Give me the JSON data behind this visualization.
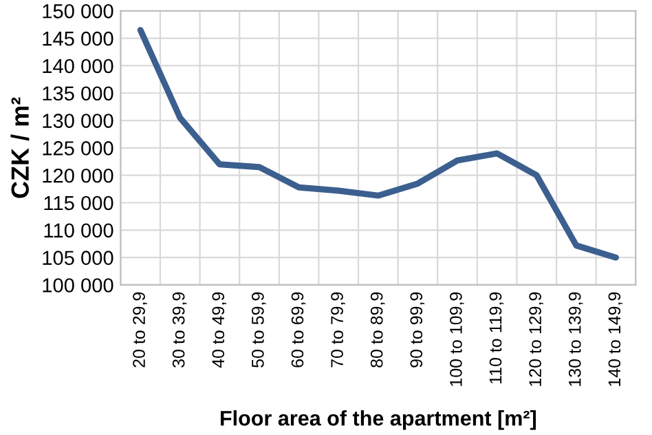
{
  "chart_data": {
    "type": "line",
    "xlabel": "Floor area of the apartment [m²]",
    "ylabel": "CZK / m²",
    "categories": [
      "20 to 29,9",
      "30 to 39,9",
      "40 to 49,9",
      "50 to 59,9",
      "60 to 69,9",
      "70 to 79,9",
      "80 to 89,9",
      "90 to 99,9",
      "100 to 109,9",
      "110 to 119,9",
      "120 to 129,9",
      "130 to 139,9",
      "140 to 149,9"
    ],
    "series": [
      {
        "color": "#3b5f8e",
        "values": [
          146500,
          130500,
          122000,
          121500,
          117800,
          117200,
          116300,
          118500,
          122700,
          124000,
          120000,
          107200,
          105000
        ]
      }
    ],
    "ylim": [
      100000,
      150000
    ],
    "yticks": [
      {
        "value": 100000,
        "label": "100 000"
      },
      {
        "value": 105000,
        "label": "105 000"
      },
      {
        "value": 110000,
        "label": "110 000"
      },
      {
        "value": 115000,
        "label": "115 000"
      },
      {
        "value": 120000,
        "label": "120 000"
      },
      {
        "value": 125000,
        "label": "125 000"
      },
      {
        "value": 130000,
        "label": "130 000"
      },
      {
        "value": 135000,
        "label": "135 000"
      },
      {
        "value": 140000,
        "label": "140 000"
      },
      {
        "value": 145000,
        "label": "145 000"
      },
      {
        "value": 150000,
        "label": "150 000"
      }
    ],
    "grid": true,
    "marker": "none",
    "line_style": "solid"
  }
}
